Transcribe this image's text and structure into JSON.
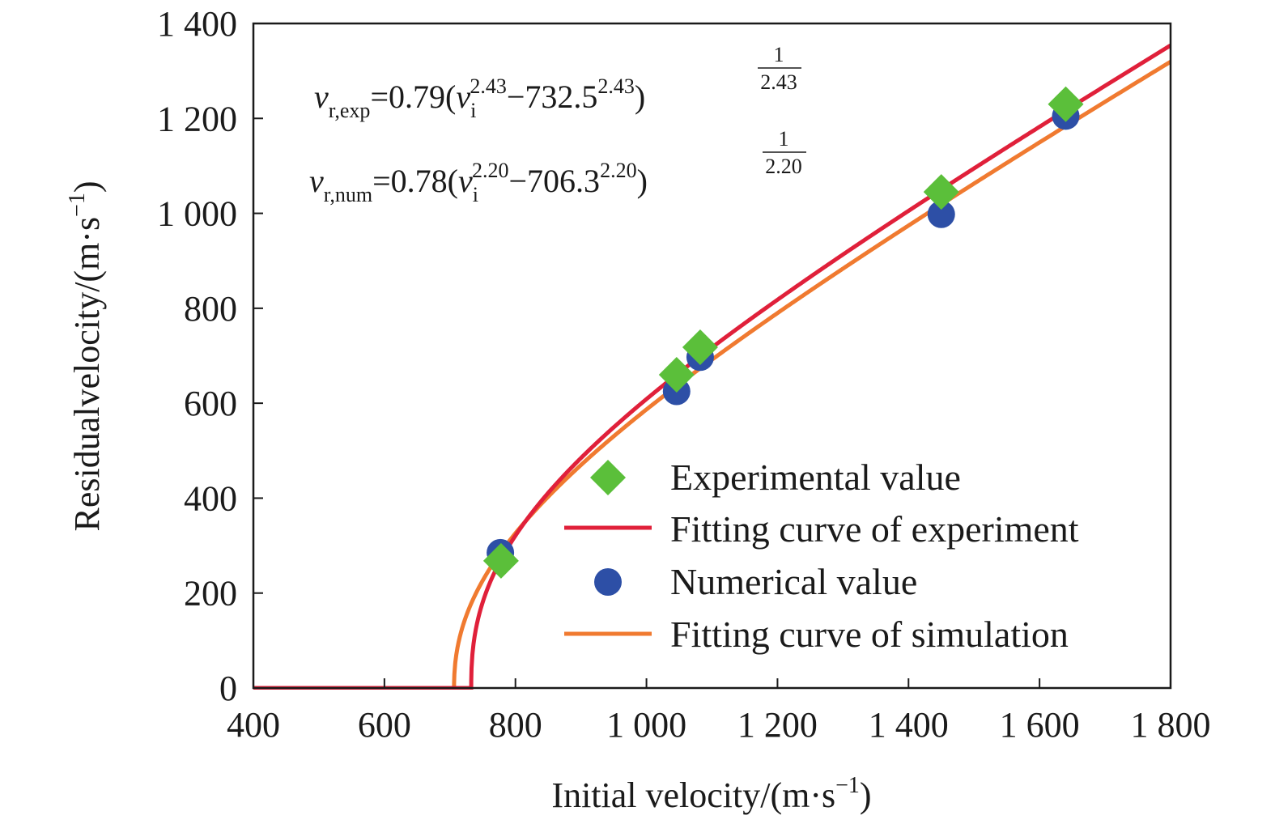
{
  "chart_data": {
    "type": "scatter",
    "xlabel": "Initial velocity/(m·s",
    "xlabel_sup": "−1",
    "xlabel_close": ")",
    "ylabel": "Residualvelocity/(m·s",
    "ylabel_sup": "−1",
    "ylabel_close": ")",
    "xlim": [
      400,
      1800
    ],
    "ylim": [
      0,
      1400
    ],
    "x_ticks": [
      400,
      600,
      800,
      1000,
      1200,
      1400,
      1600,
      1800
    ],
    "x_tick_labels": [
      "400",
      "600",
      "800",
      "1 000",
      "1 200",
      "1 400",
      "1 600",
      "1 800"
    ],
    "y_ticks": [
      0,
      200,
      400,
      600,
      800,
      1000,
      1200,
      1400
    ],
    "y_tick_labels": [
      "0",
      "200",
      "400",
      "600",
      "800",
      "1 000",
      "1 200",
      "1 400"
    ],
    "grid": false,
    "legend_position": "bottom-right",
    "series": [
      {
        "name": "Experimental value",
        "kind": "scatter",
        "marker": "diamond",
        "color": "#5bbf3a",
        "x": [
          778,
          1046,
          1082,
          1450,
          1640
        ],
        "y": [
          268,
          660,
          718,
          1045,
          1230
        ]
      },
      {
        "name": "Fitting curve of experiment",
        "kind": "fit",
        "color": "#e0203a",
        "a": 0.79,
        "p": 2.43,
        "v_bl": 732.5
      },
      {
        "name": "Numerical value",
        "kind": "scatter",
        "marker": "circle",
        "color": "#2d4fa6",
        "x": [
          777,
          1046,
          1082,
          1450,
          1640
        ],
        "y": [
          285,
          625,
          697,
          998,
          1205
        ]
      },
      {
        "name": "Fitting curve of simulation",
        "kind": "fit",
        "color": "#f07a30",
        "a": 0.78,
        "p": 2.2,
        "v_bl": 706.3
      }
    ],
    "annotations": [
      {
        "id": "exp",
        "var": "v",
        "sub": "r,exp",
        "coef": "=0.79(",
        "var2": "v",
        "sub2": "i",
        "sup2": "2.43",
        "minus": "−732.5",
        "sup3": "2.43",
        "close": ")",
        "exp_num": "1",
        "exp_den": "2.43"
      },
      {
        "id": "num",
        "var": "v",
        "sub": "r,num",
        "coef": "=0.78(",
        "var2": "v",
        "sub2": "i",
        "sup2": "2.20",
        "minus": "−706.3",
        "sup3": "2.20",
        "close": ")",
        "exp_num": "1",
        "exp_den": "2.20"
      }
    ]
  }
}
